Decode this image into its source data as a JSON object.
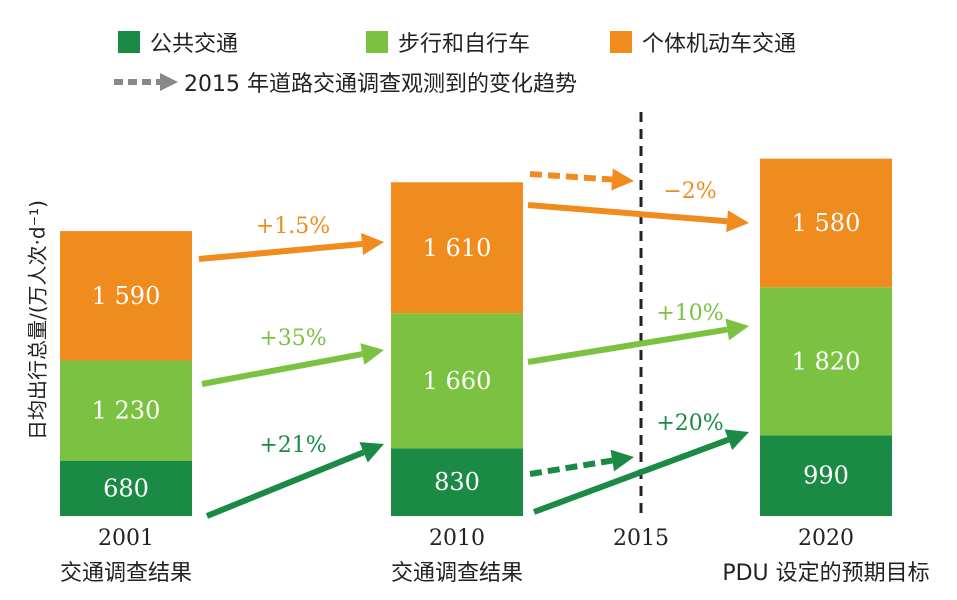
{
  "chart_data": {
    "type": "bar",
    "stacked": true,
    "ylabel": "日均出行总量/(万人次·d⁻¹)",
    "categories": [
      {
        "year": "2001",
        "sub": "交通调查结果"
      },
      {
        "year": "2010",
        "sub": "交通调查结果"
      },
      {
        "year": "2020",
        "sub": "PDU 设定的预期目标"
      }
    ],
    "series": [
      {
        "name": "公共交通",
        "color": "#1b8a45",
        "values": [
          680,
          830,
          990
        ],
        "labels": [
          "680",
          "830",
          "990"
        ]
      },
      {
        "name": "步行和自行车",
        "color": "#7cc242",
        "values": [
          1230,
          1660,
          1820
        ],
        "labels": [
          "1 230",
          "1 660",
          "1 820"
        ]
      },
      {
        "name": "个体机动车交通",
        "color": "#ef8c1d",
        "values": [
          1590,
          1610,
          1580
        ],
        "labels": [
          "1 590",
          "1 610",
          "1 580"
        ]
      }
    ],
    "changes_2001_2010": [
      "+21%",
      "+35%",
      "+1.5%"
    ],
    "changes_2010_2020": [
      "+20%",
      "+10%",
      "−2%"
    ],
    "marker_2015": "2015",
    "trend_legend": "2015 年道路交通调查观测到的变化趋势",
    "trend_color": "#888888"
  }
}
